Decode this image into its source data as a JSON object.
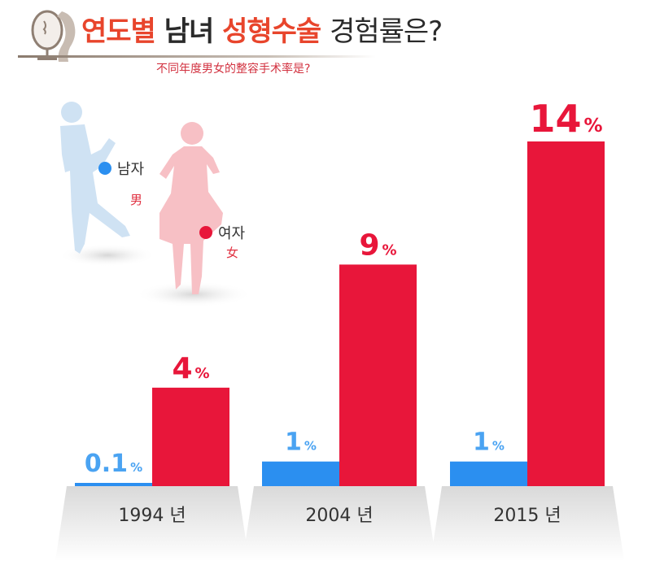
{
  "header": {
    "title_part1": "연도별",
    "title_part2": "남녀",
    "title_part3": "성형수술",
    "title_part4": "경험률은?",
    "subtitle": "不同年度男女的整容手术率是?"
  },
  "legend": {
    "male_label": "남자",
    "male_sub": "男",
    "female_label": "여자",
    "female_sub": "女"
  },
  "colors": {
    "male": "#2b8ff0",
    "female": "#e8163a",
    "male_label": "#4aa3f2",
    "female_label": "#e8163a",
    "title_accent": "#e8452c"
  },
  "chart_data": {
    "type": "bar",
    "categories": [
      "1994 년",
      "2004 년",
      "2015 년"
    ],
    "series": [
      {
        "name": "남자",
        "values": [
          0.1,
          1,
          1
        ],
        "labels": [
          "0.1",
          "1",
          "1"
        ]
      },
      {
        "name": "여자",
        "values": [
          4,
          9,
          14
        ],
        "labels": [
          "4",
          "9",
          "14"
        ]
      }
    ],
    "unit": "%",
    "ylim": [
      0,
      14
    ],
    "grid": false
  }
}
